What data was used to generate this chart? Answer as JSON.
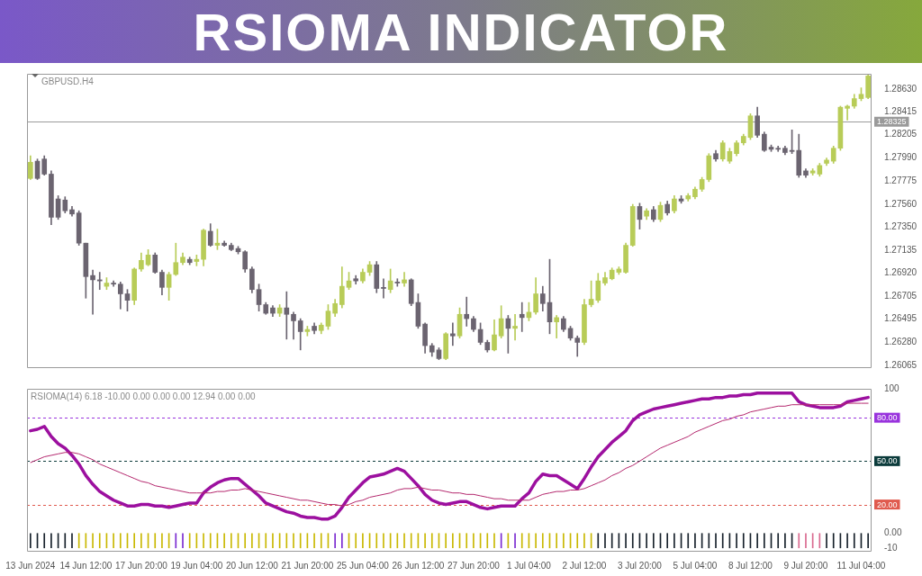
{
  "chart_data": [
    {
      "type": "candlestick",
      "title": "RSIOMA INDICATOR",
      "subtitle": "GBPUSD.H4",
      "categories": [
        null,
        null,
        null,
        null,
        null,
        null,
        null,
        null,
        null,
        null,
        null,
        null,
        null,
        null,
        null,
        null,
        null,
        null,
        null,
        null,
        null,
        null,
        null,
        null,
        null,
        null,
        null,
        null,
        null,
        null,
        null,
        null,
        null,
        null,
        null,
        null,
        null,
        null,
        null,
        null,
        null,
        null,
        null,
        null,
        null,
        null,
        null,
        null,
        null,
        null,
        null,
        null,
        null,
        null,
        null,
        null,
        null,
        null,
        null,
        null,
        null,
        null,
        null,
        null,
        null,
        null,
        null,
        null,
        null,
        null,
        null,
        null,
        null,
        null,
        null,
        null,
        null,
        null,
        null,
        null,
        null,
        null,
        null,
        null,
        null,
        null,
        null,
        null,
        null,
        null,
        null,
        null,
        null,
        null,
        null,
        null,
        null,
        null,
        null,
        null,
        null,
        null,
        null,
        null,
        null,
        null,
        null,
        null,
        null,
        null,
        null,
        null,
        null,
        null,
        null,
        null,
        null,
        null,
        null,
        null,
        null,
        null
      ],
      "ohlc": [
        [
          1.278,
          1.2801,
          1.2779,
          1.2795
        ],
        [
          1.2796,
          1.2798,
          1.2779,
          1.278
        ],
        [
          1.2798,
          1.2801,
          1.2783,
          1.2784
        ],
        [
          1.2784,
          1.2787,
          1.2737,
          1.2744
        ],
        [
          1.2761,
          1.2764,
          1.2742,
          1.2744
        ],
        [
          1.276,
          1.2763,
          1.2748,
          1.275
        ],
        [
          1.2751,
          1.2754,
          1.2745,
          1.2747
        ],
        [
          1.2748,
          1.275,
          1.2718,
          1.272
        ],
        [
          1.272,
          1.272,
          1.2669,
          1.2689
        ],
        [
          1.269,
          1.2695,
          1.2654,
          1.2686
        ],
        [
          1.2686,
          1.2693,
          1.2677,
          1.2685
        ],
        [
          1.268,
          1.2688,
          1.2677,
          1.2683
        ],
        [
          1.2683,
          1.2685,
          1.268,
          1.2682
        ],
        [
          1.2682,
          1.2684,
          1.2659,
          1.2673
        ],
        [
          1.2673,
          1.2677,
          1.2657,
          1.2667
        ],
        [
          1.2667,
          1.2697,
          1.2663,
          1.2696
        ],
        [
          1.2696,
          1.2711,
          1.2694,
          1.2704
        ],
        [
          1.27,
          1.2714,
          1.2699,
          1.2709
        ],
        [
          1.2709,
          1.2711,
          1.2692,
          1.2693
        ],
        [
          1.2693,
          1.2695,
          1.2672,
          1.2679
        ],
        [
          1.2679,
          1.2693,
          1.2667,
          1.2691
        ],
        [
          1.2691,
          1.272,
          1.269,
          1.2702
        ],
        [
          1.2702,
          1.2711,
          1.27,
          1.2707
        ],
        [
          1.2705,
          1.2707,
          1.27,
          1.2702
        ],
        [
          1.2703,
          1.2709,
          1.2699,
          1.2705
        ],
        [
          1.2705,
          1.2733,
          1.2699,
          1.2732
        ],
        [
          1.2731,
          1.2738,
          1.2717,
          1.2718
        ],
        [
          1.2718,
          1.2733,
          1.2714,
          1.272
        ],
        [
          1.272,
          1.2722,
          1.2717,
          1.2718
        ],
        [
          1.2718,
          1.272,
          1.2713,
          1.2714
        ],
        [
          1.2715,
          1.2717,
          1.271,
          1.2712
        ],
        [
          1.2712,
          1.2713,
          1.2693,
          1.2696
        ],
        [
          1.2696,
          1.2698,
          1.2674,
          1.2677
        ],
        [
          1.2677,
          1.2682,
          1.2657,
          1.2663
        ],
        [
          1.2663,
          1.2665,
          1.2654,
          1.2655
        ],
        [
          1.266,
          1.2662,
          1.2652,
          1.2655
        ],
        [
          1.2655,
          1.2663,
          1.2652,
          1.266
        ],
        [
          1.266,
          1.2675,
          1.2631,
          1.2654
        ],
        [
          1.2654,
          1.2656,
          1.2631,
          1.2648
        ],
        [
          1.2648,
          1.265,
          1.2621,
          1.2638
        ],
        [
          1.2638,
          1.2643,
          1.2634,
          1.264
        ],
        [
          1.2643,
          1.2646,
          1.2636,
          1.2639
        ],
        [
          1.2639,
          1.2646,
          1.2636,
          1.2644
        ],
        [
          1.2643,
          1.2663,
          1.264,
          1.2657
        ],
        [
          1.2655,
          1.2668,
          1.2652,
          1.2664
        ],
        [
          1.2663,
          1.2698,
          1.266,
          1.268
        ],
        [
          1.2679,
          1.2693,
          1.2677,
          1.2685
        ],
        [
          1.2687,
          1.269,
          1.2682,
          1.2685
        ],
        [
          1.2685,
          1.2696,
          1.2683,
          1.2693
        ],
        [
          1.2693,
          1.2703,
          1.269,
          1.27
        ],
        [
          1.27,
          1.2703,
          1.2674,
          1.2678
        ],
        [
          1.2679,
          1.2687,
          1.2669,
          1.2678
        ],
        [
          1.2677,
          1.2696,
          1.2674,
          1.2685
        ],
        [
          1.2684,
          1.2687,
          1.268,
          1.2683
        ],
        [
          1.2683,
          1.2693,
          1.268,
          1.2686
        ],
        [
          1.2686,
          1.2687,
          1.2662,
          1.2664
        ],
        [
          1.2665,
          1.2673,
          1.2641,
          1.2643
        ],
        [
          1.2645,
          1.2646,
          1.2618,
          1.2625
        ],
        [
          1.2625,
          1.2627,
          1.2615,
          1.2619
        ],
        [
          1.2621,
          1.2623,
          1.2612,
          1.2613
        ],
        [
          1.2613,
          1.2637,
          1.2612,
          1.2636
        ],
        [
          1.2636,
          1.2646,
          1.2625,
          1.2634
        ],
        [
          1.2634,
          1.266,
          1.2632,
          1.2654
        ],
        [
          1.2654,
          1.267,
          1.2643,
          1.265
        ],
        [
          1.265,
          1.2652,
          1.2638,
          1.264
        ],
        [
          1.264,
          1.2646,
          1.2626,
          1.2628
        ],
        [
          1.2628,
          1.263,
          1.2619,
          1.2621
        ],
        [
          1.2621,
          1.2649,
          1.262,
          1.2635
        ],
        [
          1.2634,
          1.2662,
          1.2632,
          1.265
        ],
        [
          1.265,
          1.2653,
          1.2618,
          1.2641
        ],
        [
          1.2641,
          1.2654,
          1.263,
          1.2643
        ],
        [
          1.2654,
          1.2665,
          1.2638,
          1.2651
        ],
        [
          1.2651,
          1.2665,
          1.2648,
          1.2656
        ],
        [
          1.2656,
          1.2688,
          1.2654,
          1.2673
        ],
        [
          1.2673,
          1.268,
          1.2657,
          1.2664
        ],
        [
          1.2665,
          1.2705,
          1.2636,
          1.2647
        ],
        [
          1.2647,
          1.2653,
          1.2632,
          1.2651
        ],
        [
          1.265,
          1.2652,
          1.2638,
          1.264
        ],
        [
          1.2641,
          1.2643,
          1.263,
          1.2632
        ],
        [
          1.2632,
          1.2634,
          1.2615,
          1.2628
        ],
        [
          1.2628,
          1.2668,
          1.2626,
          1.2663
        ],
        [
          1.2663,
          1.2685,
          1.2661,
          1.2668
        ],
        [
          1.2667,
          1.2692,
          1.2665,
          1.2685
        ],
        [
          1.2683,
          1.2693,
          1.2681,
          1.2688
        ],
        [
          1.2687,
          1.2697,
          1.2686,
          1.2695
        ],
        [
          1.2693,
          1.2698,
          1.2691,
          1.2696
        ],
        [
          1.2693,
          1.272,
          1.2692,
          1.2718
        ],
        [
          1.2718,
          1.2756,
          1.2717,
          1.2754
        ],
        [
          1.2754,
          1.2757,
          1.2733,
          1.2742
        ],
        [
          1.2745,
          1.2752,
          1.2742,
          1.275
        ],
        [
          1.2751,
          1.2754,
          1.274,
          1.2742
        ],
        [
          1.2742,
          1.2758,
          1.274,
          1.2755
        ],
        [
          1.2756,
          1.2759,
          1.2746,
          1.2748
        ],
        [
          1.275,
          1.2764,
          1.2748,
          1.2761
        ],
        [
          1.2761,
          1.2764,
          1.2757,
          1.2759
        ],
        [
          1.2761,
          1.2766,
          1.2759,
          1.2764
        ],
        [
          1.2763,
          1.2772,
          1.2761,
          1.277
        ],
        [
          1.277,
          1.2781,
          1.2768,
          1.2779
        ],
        [
          1.2779,
          1.2803,
          1.2777,
          1.2801
        ],
        [
          1.2803,
          1.2806,
          1.2796,
          1.2798
        ],
        [
          1.2798,
          1.2815,
          1.2796,
          1.2813
        ],
        [
          1.2796,
          1.2808,
          1.2794,
          1.2805
        ],
        [
          1.2803,
          1.2815,
          1.2801,
          1.2813
        ],
        [
          1.2813,
          1.2821,
          1.2811,
          1.2819
        ],
        [
          1.2818,
          1.284,
          1.2816,
          1.2838
        ],
        [
          1.2838,
          1.2846,
          1.2818,
          1.282
        ],
        [
          1.2821,
          1.2823,
          1.2805,
          1.2806
        ],
        [
          1.2809,
          1.2811,
          1.2805,
          1.2807
        ],
        [
          1.2808,
          1.281,
          1.2805,
          1.2807
        ],
        [
          1.2808,
          1.281,
          1.2802,
          1.2804
        ],
        [
          1.2806,
          1.2825,
          1.2803,
          1.2805
        ],
        [
          1.2806,
          1.2821,
          1.2781,
          1.2783
        ],
        [
          1.2787,
          1.2789,
          1.2781,
          1.2783
        ],
        [
          1.2785,
          1.2789,
          1.2783,
          1.2787
        ],
        [
          1.2784,
          1.2794,
          1.2782,
          1.2792
        ],
        [
          1.2794,
          1.2799,
          1.2792,
          1.2797
        ],
        [
          1.2796,
          1.281,
          1.2794,
          1.2808
        ],
        [
          1.2808,
          1.2847,
          1.2806,
          1.2846
        ],
        [
          1.2845,
          1.2848,
          1.2834,
          1.2847
        ],
        [
          1.2847,
          1.2858,
          1.2845,
          1.2854
        ],
        [
          1.2854,
          1.2864,
          1.2852,
          1.2858
        ],
        [
          1.2855,
          1.2876,
          1.2854,
          1.2875
        ]
      ],
      "colors": [
        "#b8cc58",
        "#6b6470",
        "#6b6470",
        "#6b6470",
        "#6b6470",
        "#6b6470",
        "#6b6470",
        "#6b6470",
        "#6b6470",
        "#6b6470",
        "#6b6470",
        "#b8cc58",
        "#6b6470",
        "#6b6470",
        "#6b6470",
        "#b8cc58",
        "#b8cc58",
        "#b8cc58",
        "#6b6470",
        "#6b6470",
        "#b8cc58",
        "#b8cc58",
        "#b8cc58",
        "#6b6470",
        "#b8cc58",
        "#b8cc58",
        "#6b6470",
        "#b8cc58",
        "#6b6470",
        "#6b6470",
        "#6b6470",
        "#6b6470",
        "#6b6470",
        "#6b6470",
        "#6b6470",
        "#6b6470",
        "#b8cc58",
        "#6b6470",
        "#6b6470",
        "#6b6470",
        "#b8cc58",
        "#6b6470",
        "#b8cc58",
        "#b8cc58",
        "#b8cc58",
        "#b8cc58",
        "#b8cc58",
        "#6b6470",
        "#b8cc58",
        "#b8cc58",
        "#6b6470",
        "#6b6470",
        "#b8cc58",
        "#6b6470",
        "#b8cc58",
        "#6b6470",
        "#6b6470",
        "#6b6470",
        "#6b6470",
        "#6b6470",
        "#b8cc58",
        "#6b6470",
        "#b8cc58",
        "#6b6470",
        "#6b6470",
        "#6b6470",
        "#6b6470",
        "#b8cc58",
        "#b8cc58",
        "#6b6470",
        "#b8cc58",
        "#6b6470",
        "#b8cc58",
        "#b8cc58",
        "#6b6470",
        "#6b6470",
        "#b8cc58",
        "#6b6470",
        "#6b6470",
        "#6b6470",
        "#b8cc58",
        "#b8cc58",
        "#b8cc58",
        "#b8cc58",
        "#b8cc58",
        "#b8cc58",
        "#b8cc58",
        "#b8cc58",
        "#6b6470",
        "#b8cc58",
        "#6b6470",
        "#b8cc58",
        "#6b6470",
        "#b8cc58",
        "#6b6470",
        "#b8cc58",
        "#b8cc58",
        "#b8cc58",
        "#b8cc58",
        "#6b6470",
        "#b8cc58",
        "#b8cc58",
        "#b8cc58",
        "#b8cc58",
        "#b8cc58",
        "#6b6470",
        "#6b6470",
        "#6b6470",
        "#6b6470",
        "#6b6470",
        "#6b6470",
        "#6b6470",
        "#6b6470",
        "#b8cc58",
        "#b8cc58",
        "#b8cc58",
        "#b8cc58",
        "#b8cc58",
        "#b8cc58",
        "#b8cc58",
        "#b8cc58",
        "#b8cc58"
      ],
      "ylim": [
        1.2605,
        1.2877
      ],
      "yticks": [
        {
          "value": 1.26065,
          "label": "1.26065"
        },
        {
          "value": 1.2628,
          "label": "1.26280"
        },
        {
          "value": 1.26495,
          "label": "1.26495"
        },
        {
          "value": 1.26705,
          "label": "1.26705"
        },
        {
          "value": 1.2692,
          "label": "1.26920"
        },
        {
          "value": 1.27135,
          "label": "1.27135"
        },
        {
          "value": 1.2735,
          "label": "1.27350"
        },
        {
          "value": 1.2756,
          "label": "1.27560"
        },
        {
          "value": 1.27775,
          "label": "1.27775"
        },
        {
          "value": 1.2799,
          "label": "1.27990"
        },
        {
          "value": 1.28205,
          "label": "1.28205"
        },
        {
          "value": 1.28415,
          "label": "1.28415"
        },
        {
          "value": 1.2863,
          "label": "1.28630"
        }
      ],
      "ref_lines": [
        {
          "axis": "y",
          "value": 1.28325,
          "label": "1.28325",
          "color": "#9a9a9a",
          "line_style": "solid"
        }
      ],
      "tick_labels": "y"
    },
    {
      "type": "line",
      "title": "RSIOMA(14) 6.18 -10.00 0.00 0.00 0.00 12.94 0.00 0.00",
      "categories": [
        "13 Jun 2024",
        null,
        null,
        null,
        null,
        null,
        null,
        null,
        "14 Jun 12:00",
        null,
        null,
        null,
        null,
        null,
        null,
        null,
        "17 Jun 20:00",
        null,
        null,
        null,
        null,
        null,
        null,
        null,
        "19 Jun 04:00",
        null,
        null,
        null,
        null,
        null,
        null,
        null,
        "20 Jun 12:00",
        null,
        null,
        null,
        null,
        null,
        null,
        null,
        "21 Jun 20:00",
        null,
        null,
        null,
        null,
        null,
        null,
        null,
        "25 Jun 04:00",
        null,
        null,
        null,
        null,
        null,
        null,
        null,
        "26 Jun 12:00",
        null,
        null,
        null,
        null,
        null,
        null,
        null,
        "27 Jun 20:00",
        null,
        null,
        null,
        null,
        null,
        null,
        null,
        "1 Jul 04:00",
        null,
        null,
        null,
        null,
        null,
        null,
        null,
        "2 Jul 12:00",
        null,
        null,
        null,
        null,
        null,
        null,
        null,
        "3 Jul 20:00",
        null,
        null,
        null,
        null,
        null,
        null,
        null,
        "5 Jul 04:00",
        null,
        null,
        null,
        null,
        null,
        null,
        null,
        "8 Jul 12:00",
        null,
        null,
        null,
        null,
        null,
        null,
        null,
        "9 Jul 20:00",
        null,
        null,
        null,
        null,
        null,
        null,
        null,
        "11 Jul 04:00",
        null
      ],
      "series": [
        {
          "type": "bar",
          "colors": [
            "#16202a",
            "#16202a",
            "#16202a",
            "#16202a",
            "#16202a",
            "#16202a",
            "#16202a",
            "#c9b800",
            "#c9b800",
            "#c9b800",
            "#c9b800",
            "#c9b800",
            "#c9b800",
            "#c9b800",
            "#c9b800",
            "#c9b800",
            "#c9b800",
            "#c9b800",
            "#c9b800",
            "#c9b800",
            "#c9b800",
            "#7a2bd0",
            "#7a2bd0",
            "#c9b800",
            "#c9b800",
            "#c9b800",
            "#c9b800",
            "#c9b800",
            "#c9b800",
            "#c9b800",
            "#c9b800",
            "#c9b800",
            "#c9b800",
            "#c9b800",
            "#c9b800",
            "#c9b800",
            "#c9b800",
            "#c9b800",
            "#c9b800",
            "#c9b800",
            "#c9b800",
            "#c9b800",
            "#c9b800",
            "#c9b800",
            "#7a2bd0",
            "#7a2bd0",
            "#c9b800",
            "#c9b800",
            "#c9b800",
            "#c9b800",
            "#c9b800",
            "#c9b800",
            "#c9b800",
            "#c9b800",
            "#c9b800",
            "#c9b800",
            "#c9b800",
            "#c9b800",
            "#c9b800",
            "#c9b800",
            "#c9b800",
            "#c9b800",
            "#c9b800",
            "#c9b800",
            "#c9b800",
            "#c9b800",
            "#c9b800",
            "#c9b800",
            "#7a2bd0",
            "#c9b800",
            "#7a2bd0",
            "#c9b800",
            "#c9b800",
            "#c9b800",
            "#c9b800",
            "#c9b800",
            "#c9b800",
            "#c9b800",
            "#c9b800",
            "#c9b800",
            "#c9b800",
            "#c9b800",
            "#16202a",
            "#16202a",
            "#16202a",
            "#16202a",
            "#16202a",
            "#16202a",
            "#16202a",
            "#16202a",
            "#16202a",
            "#16202a",
            "#16202a",
            "#16202a",
            "#16202a",
            "#16202a",
            "#16202a",
            "#16202a",
            "#16202a",
            "#16202a",
            "#16202a",
            "#16202a",
            "#16202a",
            "#16202a",
            "#16202a",
            "#16202a",
            "#16202a",
            "#16202a",
            "#16202a",
            "#16202a",
            "#16202a",
            "#d9698f",
            "#d9698f",
            "#d9698f",
            "#d9698f",
            "#16202a",
            "#16202a",
            "#16202a",
            "#16202a",
            "#16202a",
            "#16202a",
            "#16202a"
          ],
          "values": [
            -10,
            -10,
            -10,
            -10,
            -10,
            -10,
            -10,
            -10,
            -10,
            -10,
            -10,
            -10,
            -10,
            -10,
            -10,
            -10,
            -10,
            -10,
            -10,
            -10,
            -10,
            -10,
            -10,
            -10,
            -10,
            -10,
            -10,
            -10,
            -10,
            -10,
            -10,
            -10,
            -10,
            -10,
            -10,
            -10,
            -10,
            -10,
            -10,
            -10,
            -10,
            -10,
            -10,
            -10,
            -10,
            -10,
            -10,
            -10,
            -10,
            -10,
            -10,
            -10,
            -10,
            -10,
            -10,
            -10,
            -10,
            -10,
            -10,
            -10,
            -10,
            -10,
            -10,
            -10,
            -10,
            -10,
            -10,
            -10,
            -10,
            -10,
            -10,
            -10,
            -10,
            -10,
            -10,
            -10,
            -10,
            -10,
            -10,
            -10,
            -10,
            -10,
            -10,
            -10,
            -10,
            -10,
            -10,
            -10,
            -10,
            -10,
            -10,
            -10,
            -10,
            -10,
            -10,
            -10,
            -10,
            -10,
            -10,
            -10,
            -10,
            -10,
            -10,
            -10,
            -10,
            -10,
            -10,
            -10,
            -10,
            -10,
            -10,
            -10,
            -10,
            -10,
            -10,
            -10,
            -10,
            -10,
            -10,
            -10,
            -10,
            -10
          ]
        },
        {
          "color": "#b4286e",
          "values": [
            49,
            51,
            53,
            54,
            55,
            56,
            56,
            55,
            53,
            51,
            48,
            46,
            44,
            42,
            40,
            38,
            36,
            35,
            33,
            32,
            31,
            30,
            29,
            28,
            28,
            28,
            28,
            29,
            29,
            30,
            30,
            31,
            30,
            29,
            28,
            27,
            26,
            25,
            24,
            23,
            23,
            22,
            21,
            20,
            20,
            19,
            20,
            22,
            23,
            25,
            26,
            27,
            28,
            30,
            31,
            31,
            32,
            31,
            30,
            30,
            29,
            28,
            28,
            27,
            27,
            26,
            25,
            24,
            24,
            23,
            23,
            23,
            23,
            25,
            27,
            28,
            29,
            29,
            30,
            30,
            31,
            33,
            35,
            37,
            40,
            42,
            45,
            47,
            50,
            53,
            56,
            59,
            61,
            63,
            65,
            67,
            70,
            72,
            74,
            76,
            78,
            79,
            81,
            82,
            84,
            85,
            86,
            87,
            88,
            88,
            89,
            89,
            89,
            89,
            89,
            89,
            89,
            89,
            90,
            90,
            90,
            90
          ]
        },
        {
          "color": "#9c109f",
          "values": [
            71,
            72,
            74,
            67,
            62,
            59,
            54,
            48,
            40,
            34,
            29,
            26,
            23,
            21,
            19,
            19,
            20,
            20,
            19,
            19,
            18,
            19,
            20,
            21,
            21,
            28,
            32,
            35,
            37,
            38,
            38,
            34,
            30,
            26,
            21,
            19,
            17,
            15,
            14,
            12,
            11,
            11,
            10,
            10,
            12,
            18,
            25,
            30,
            35,
            39,
            40,
            41,
            43,
            45,
            43,
            38,
            33,
            27,
            23,
            21,
            20,
            21,
            22,
            22,
            20,
            18,
            17,
            18,
            19,
            19,
            19,
            24,
            28,
            36,
            41,
            40,
            40,
            37,
            34,
            31,
            38,
            46,
            53,
            58,
            63,
            67,
            71,
            78,
            82,
            84,
            86,
            87,
            88,
            89,
            90,
            91,
            92,
            93,
            93,
            94,
            94,
            95,
            95,
            96,
            96,
            97,
            97,
            97,
            97,
            97,
            97,
            91,
            89,
            88,
            87,
            87,
            87,
            88,
            91,
            92,
            93,
            94
          ]
        }
      ],
      "ylim": [
        -12,
        100
      ],
      "yticks": [
        100,
        {
          "value": 0,
          "label": "0.00"
        },
        -10
      ],
      "ref_lines": [
        {
          "axis": "y",
          "value": 80,
          "label": "80.00",
          "color": "#9933dd",
          "line_style": "dashed"
        },
        {
          "axis": "y",
          "value": 50,
          "label": "50.00",
          "color": "#0b3b3b",
          "line_style": "dashed"
        },
        {
          "axis": "y",
          "value": 20,
          "label": "20.00",
          "color": "#e05a4e",
          "line_style": "dashed"
        }
      ]
    }
  ]
}
